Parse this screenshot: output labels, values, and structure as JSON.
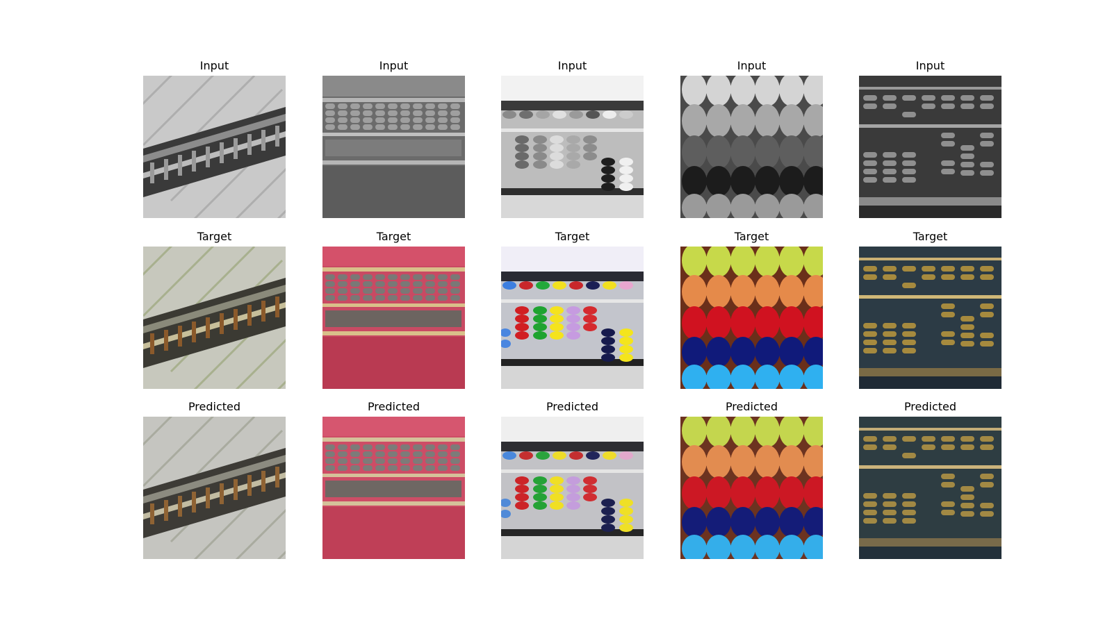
{
  "figure": {
    "rows": [
      {
        "label": "Input"
      },
      {
        "label": "Target"
      },
      {
        "label": "Predicted"
      }
    ],
    "columns": [
      {
        "scene": "diagonal-abacus-on-striped-cloth"
      },
      {
        "scene": "abacus-on-pink-cloth"
      },
      {
        "scene": "colorful-bead-abacus-closeup"
      },
      {
        "scene": "large-bead-macro"
      },
      {
        "scene": "brass-bead-abacus"
      }
    ]
  }
}
